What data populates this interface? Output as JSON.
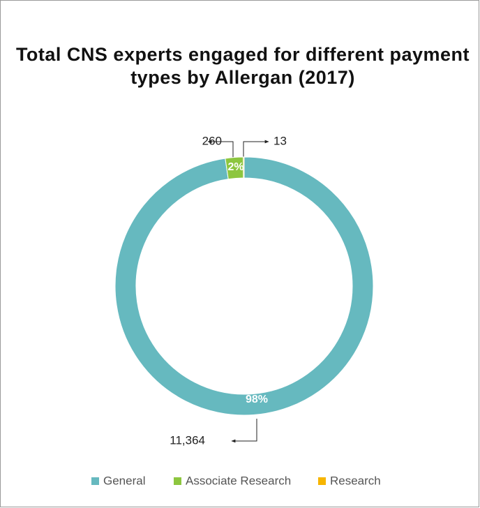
{
  "chart_data": {
    "type": "donut",
    "title": "Total CNS experts engaged for different payment types by Allergan (2017)",
    "categories": [
      "General",
      "Associate Research",
      "Research"
    ],
    "values": [
      11364,
      260,
      13
    ],
    "value_labels": [
      "11,364",
      "260",
      "13"
    ],
    "percent_labels": [
      "98%",
      "2%",
      null
    ],
    "colors": [
      "#66b9bf",
      "#8dc63f",
      "#f7b500"
    ],
    "legend": "bottom"
  }
}
